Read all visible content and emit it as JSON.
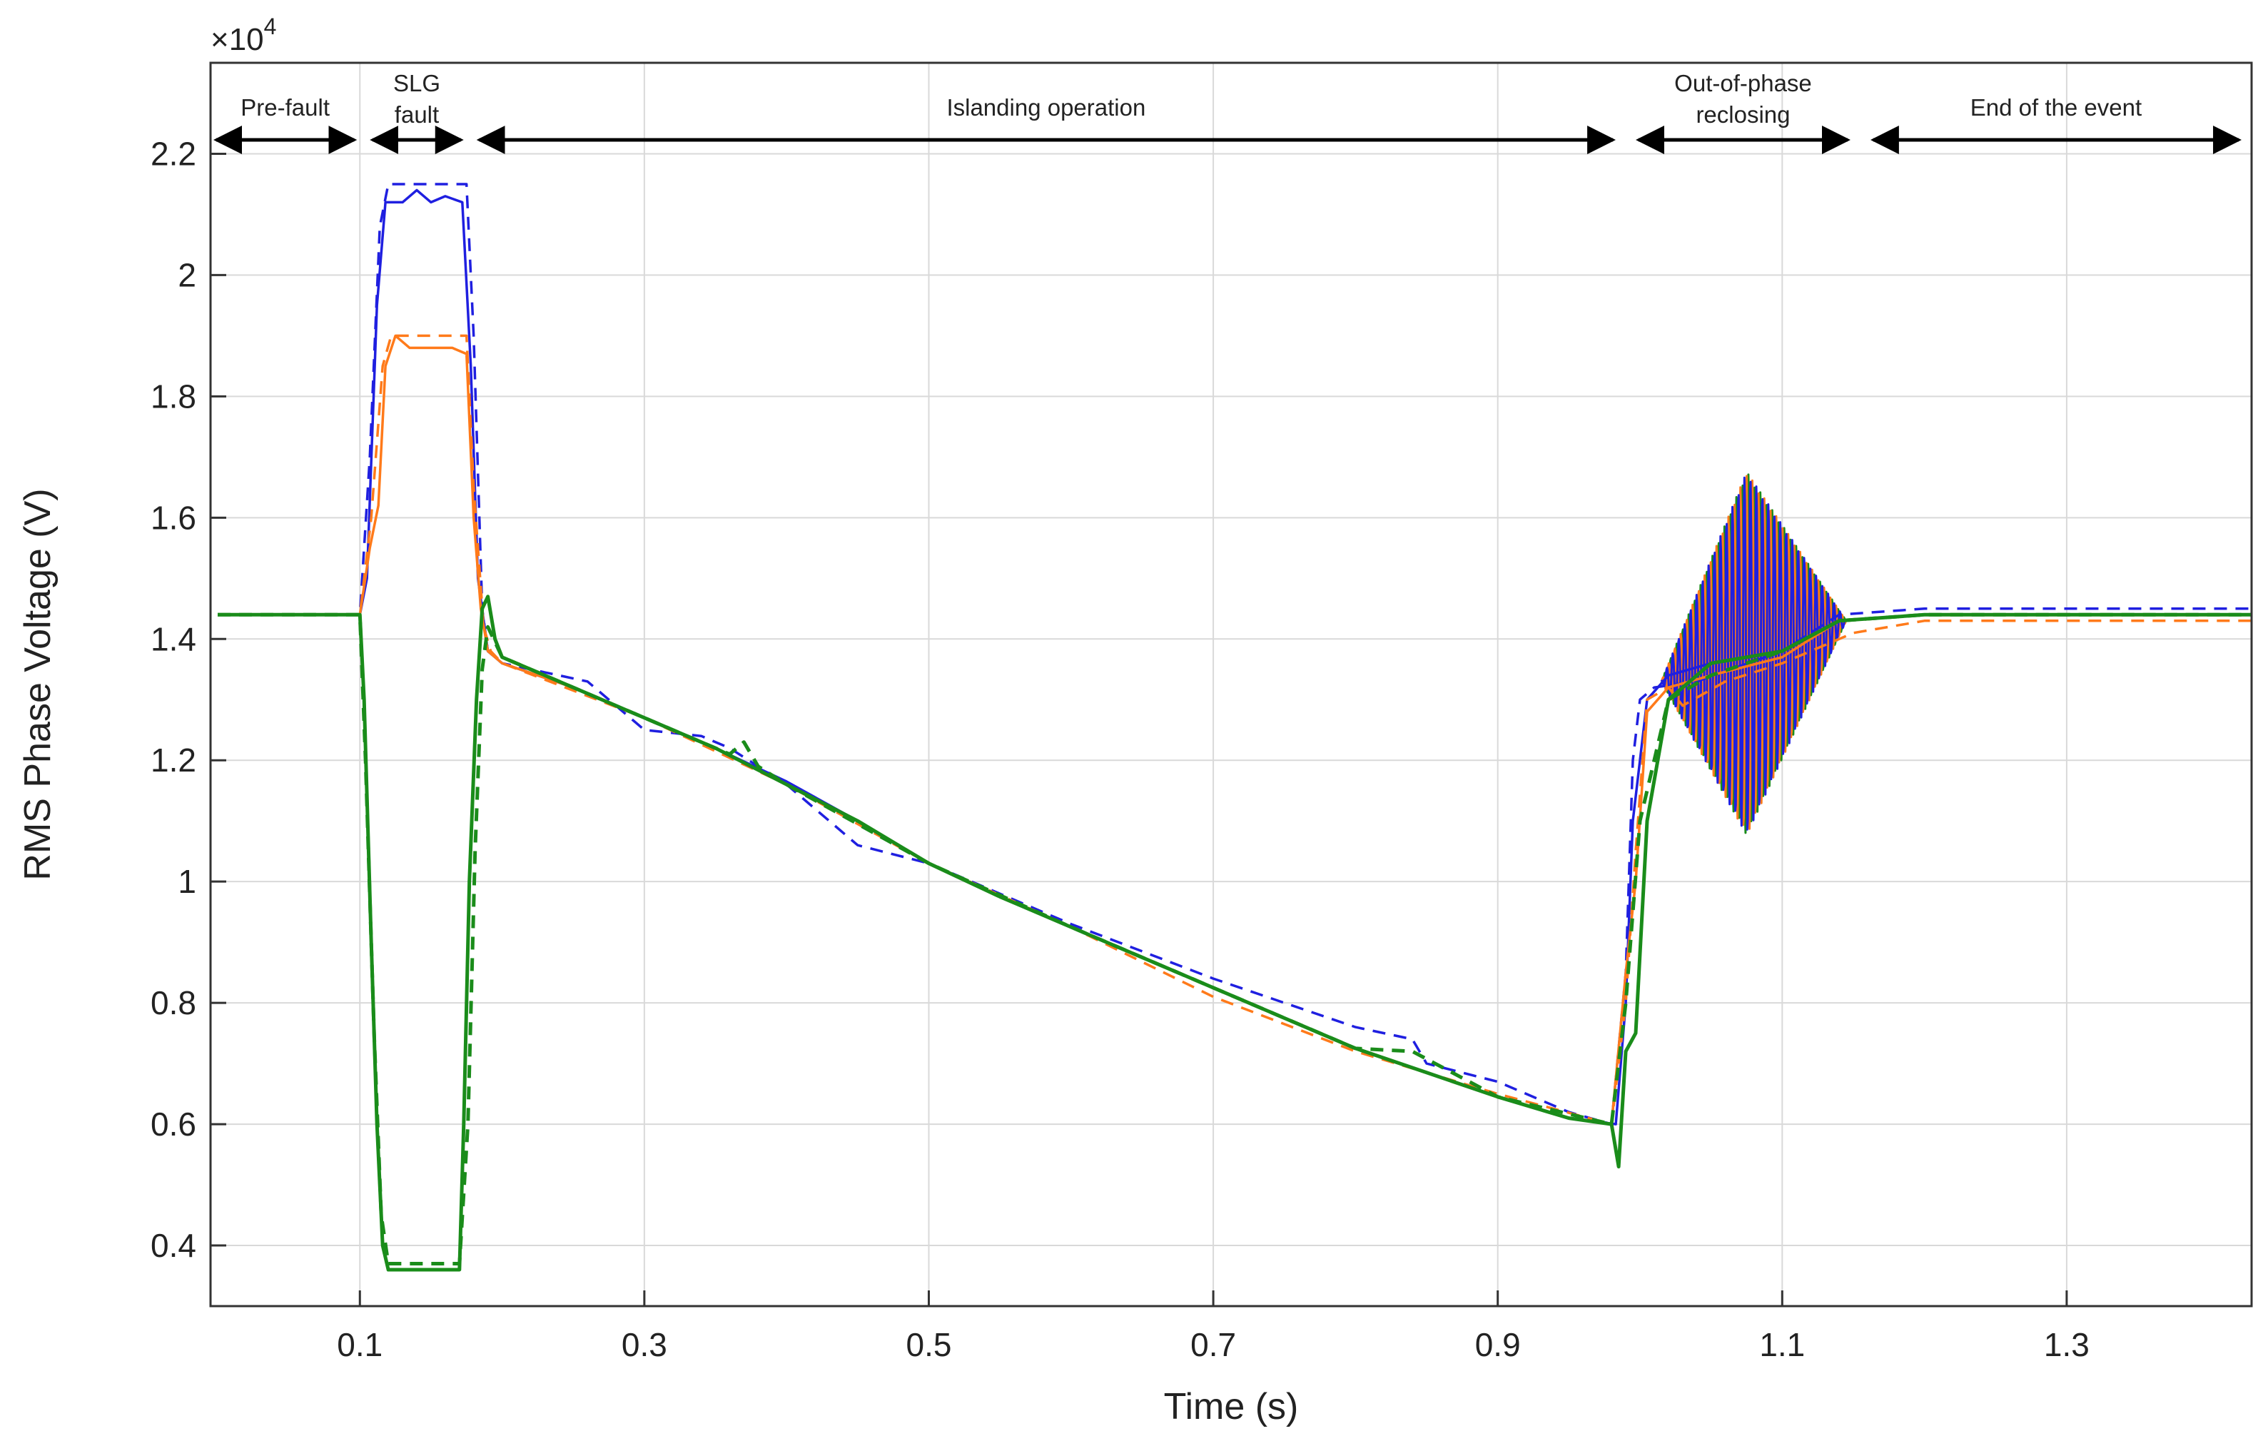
{
  "chart_data": {
    "type": "line",
    "xlabel": "Time (s)",
    "ylabel": "RMS Phase Voltage (V)",
    "y_exponent_label": "×10",
    "y_exponent_power": "4",
    "xlim": [
      -0.005,
      1.43
    ],
    "ylim": [
      0.3,
      2.35
    ],
    "y_scale_factor": 10000,
    "x_ticks": [
      0.1,
      0.3,
      0.5,
      0.7,
      0.9,
      1.1,
      1.3
    ],
    "x_tick_labels": [
      "0.1",
      "0.3",
      "0.5",
      "0.7",
      "0.9",
      "1.1",
      "1.3"
    ],
    "y_ticks": [
      0.4,
      0.6,
      0.8,
      1.0,
      1.2,
      1.4,
      1.6,
      1.8,
      2.0,
      2.2
    ],
    "y_tick_labels": [
      "0.4",
      "0.6",
      "0.8",
      "1",
      "1.2",
      "1.4",
      "1.6",
      "1.8",
      "2",
      "2.2"
    ],
    "grid": true,
    "legend": "none",
    "colors": {
      "blue": "#1f1fe0",
      "orange": "#ff7a1a",
      "green": "#1a8c1a",
      "grid": "#d9d9d9",
      "annotation": "#000000"
    },
    "annotations": [
      {
        "lines": [
          "Pre-fault"
        ],
        "x_start": -0.005,
        "x_end": 0.1
      },
      {
        "lines": [
          "SLG",
          "fault"
        ],
        "x_start": 0.105,
        "x_end": 0.175
      },
      {
        "lines": [
          "Islanding operation"
        ],
        "x_start": 0.18,
        "x_end": 0.985
      },
      {
        "lines": [
          "Out-of-phase",
          "reclosing"
        ],
        "x_start": 0.995,
        "x_end": 1.15
      },
      {
        "lines": [
          "End of the event"
        ],
        "x_start": 1.16,
        "x_end": 1.425
      }
    ],
    "series": [
      {
        "color": "blue",
        "dash": "solid",
        "x": [
          0,
          0.1,
          0.105,
          0.112,
          0.118,
          0.13,
          0.14,
          0.15,
          0.16,
          0.172,
          0.178,
          0.183,
          0.19,
          0.2,
          0.25,
          0.3,
          0.35,
          0.4,
          0.45,
          0.5,
          0.55,
          0.6,
          0.65,
          0.7,
          0.75,
          0.8,
          0.85,
          0.9,
          0.95,
          0.983,
          0.99,
          0.995,
          1.005,
          1.02,
          1.05,
          1.1,
          1.14,
          1.2,
          1.3,
          1.43
        ],
        "y": [
          1.44,
          1.44,
          1.5,
          1.95,
          2.12,
          2.12,
          2.14,
          2.12,
          2.13,
          2.12,
          1.85,
          1.5,
          1.38,
          1.36,
          1.32,
          1.27,
          1.22,
          1.165,
          1.1,
          1.03,
          0.975,
          0.925,
          0.875,
          0.825,
          0.775,
          0.725,
          0.685,
          0.645,
          0.61,
          0.6,
          0.8,
          1.1,
          1.3,
          1.34,
          1.36,
          1.38,
          1.43,
          1.44,
          1.44,
          1.44
        ]
      },
      {
        "color": "blue",
        "dash": "dashed",
        "x": [
          0,
          0.1,
          0.107,
          0.114,
          0.12,
          0.175,
          0.18,
          0.186,
          0.19,
          0.2,
          0.26,
          0.3,
          0.34,
          0.36,
          0.4,
          0.45,
          0.5,
          0.6,
          0.7,
          0.75,
          0.8,
          0.84,
          0.85,
          0.9,
          0.95,
          0.98,
          0.99,
          0.995,
          1.0,
          1.01,
          1.04,
          1.1,
          1.14,
          1.2,
          1.3,
          1.43
        ],
        "y": [
          1.44,
          1.44,
          1.7,
          2.08,
          2.15,
          2.15,
          1.9,
          1.45,
          1.38,
          1.36,
          1.33,
          1.25,
          1.24,
          1.22,
          1.16,
          1.06,
          1.03,
          0.93,
          0.84,
          0.8,
          0.76,
          0.74,
          0.7,
          0.67,
          0.62,
          0.6,
          0.85,
          1.2,
          1.3,
          1.32,
          1.33,
          1.38,
          1.44,
          1.45,
          1.45,
          1.45
        ]
      },
      {
        "color": "orange",
        "dash": "solid",
        "x": [
          0,
          0.1,
          0.107,
          0.113,
          0.118,
          0.125,
          0.135,
          0.15,
          0.165,
          0.175,
          0.18,
          0.185,
          0.19,
          0.2,
          0.25,
          0.3,
          0.35,
          0.4,
          0.45,
          0.5,
          0.55,
          0.6,
          0.65,
          0.7,
          0.75,
          0.8,
          0.85,
          0.9,
          0.95,
          0.98,
          0.99,
          0.997,
          1.005,
          1.02,
          1.05,
          1.1,
          1.14,
          1.2,
          1.3,
          1.43
        ],
        "y": [
          1.44,
          1.44,
          1.55,
          1.62,
          1.85,
          1.9,
          1.88,
          1.88,
          1.88,
          1.87,
          1.6,
          1.45,
          1.38,
          1.36,
          1.32,
          1.27,
          1.22,
          1.16,
          1.1,
          1.03,
          0.975,
          0.925,
          0.875,
          0.825,
          0.775,
          0.725,
          0.685,
          0.645,
          0.61,
          0.6,
          0.85,
          1.0,
          1.28,
          1.32,
          1.34,
          1.37,
          1.43,
          1.44,
          1.44,
          1.44
        ]
      },
      {
        "color": "orange",
        "dash": "dashed",
        "x": [
          0,
          0.1,
          0.108,
          0.116,
          0.122,
          0.175,
          0.18,
          0.187,
          0.192,
          0.2,
          0.3,
          0.4,
          0.5,
          0.6,
          0.7,
          0.8,
          0.9,
          0.98,
          0.99,
          0.997,
          1.005,
          1.02,
          1.03,
          1.06,
          1.1,
          1.15,
          1.2,
          1.3,
          1.43
        ],
        "y": [
          1.44,
          1.44,
          1.6,
          1.85,
          1.9,
          1.9,
          1.65,
          1.42,
          1.38,
          1.36,
          1.27,
          1.16,
          1.03,
          0.925,
          0.81,
          0.72,
          0.65,
          0.6,
          0.8,
          1.05,
          1.3,
          1.32,
          1.29,
          1.33,
          1.36,
          1.41,
          1.43,
          1.43,
          1.43
        ]
      },
      {
        "color": "green",
        "dash": "solid",
        "x": [
          0,
          0.1,
          0.103,
          0.108,
          0.112,
          0.116,
          0.12,
          0.13,
          0.15,
          0.17,
          0.173,
          0.177,
          0.182,
          0.186,
          0.19,
          0.195,
          0.2,
          0.25,
          0.3,
          0.35,
          0.4,
          0.45,
          0.5,
          0.55,
          0.6,
          0.65,
          0.7,
          0.75,
          0.8,
          0.85,
          0.9,
          0.95,
          0.98,
          0.985,
          0.99,
          0.997,
          1.005,
          1.02,
          1.05,
          1.1,
          1.14,
          1.2,
          1.3,
          1.43
        ],
        "y": [
          1.44,
          1.44,
          1.3,
          0.9,
          0.6,
          0.4,
          0.36,
          0.36,
          0.36,
          0.36,
          0.6,
          1.0,
          1.3,
          1.45,
          1.47,
          1.4,
          1.37,
          1.32,
          1.27,
          1.22,
          1.16,
          1.1,
          1.03,
          0.975,
          0.925,
          0.875,
          0.825,
          0.775,
          0.725,
          0.685,
          0.645,
          0.61,
          0.6,
          0.53,
          0.72,
          0.75,
          1.1,
          1.3,
          1.36,
          1.38,
          1.43,
          1.44,
          1.44,
          1.44
        ]
      },
      {
        "color": "green",
        "dash": "dashed",
        "x": [
          0,
          0.1,
          0.104,
          0.11,
          0.115,
          0.12,
          0.17,
          0.176,
          0.181,
          0.186,
          0.19,
          0.2,
          0.3,
          0.36,
          0.37,
          0.38,
          0.4,
          0.5,
          0.6,
          0.7,
          0.8,
          0.84,
          0.9,
          0.98,
          0.99,
          1.0,
          1.02,
          1.05,
          1.1,
          1.14,
          1.2,
          1.3,
          1.43
        ],
        "y": [
          1.44,
          1.44,
          1.2,
          0.75,
          0.45,
          0.37,
          0.37,
          0.6,
          1.05,
          1.35,
          1.42,
          1.37,
          1.27,
          1.21,
          1.23,
          1.19,
          1.16,
          1.03,
          0.925,
          0.825,
          0.725,
          0.72,
          0.645,
          0.6,
          0.8,
          1.1,
          1.3,
          1.34,
          1.38,
          1.43,
          1.44,
          1.44,
          1.44
        ]
      }
    ],
    "oscillation": {
      "x_start": 1.015,
      "x_end": 1.145,
      "baseline_start": 1.33,
      "baseline_end": 1.43,
      "peak_x": 1.075,
      "peak_amplitude": 0.3,
      "cycle_period": 0.0042
    }
  }
}
